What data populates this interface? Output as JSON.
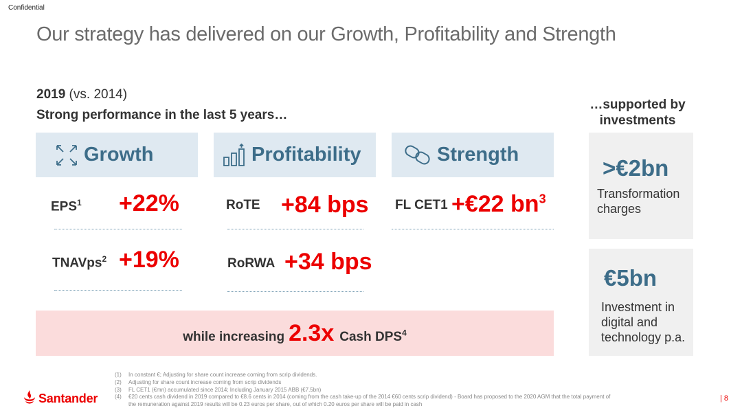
{
  "confidential": "Confidential",
  "title": "Our strategy has delivered on our Growth, Profitability and Strength",
  "year": {
    "bold": "2019",
    "rest": " (vs. 2014)"
  },
  "subtitle": "Strong performance in the last 5 years…",
  "supported_by": "…supported by investments",
  "pillars": [
    {
      "label": "Growth",
      "icon": "expand-arrows-icon"
    },
    {
      "label": "Profitability",
      "icon": "bar-growth-icon"
    },
    {
      "label": "Strength",
      "icon": "chain-link-icon"
    }
  ],
  "metrics": {
    "eps": {
      "name": "EPS",
      "sup": "1",
      "value": "+22%"
    },
    "tnavps": {
      "name": "TNAVps",
      "sup": "2",
      "value": "+19%"
    },
    "rote": {
      "name": "RoTE",
      "value": "+84 bps"
    },
    "rorwa": {
      "name": "RoRWA",
      "value": "+34 bps"
    },
    "cet1": {
      "name": "FL CET1",
      "value": "+€22 bn",
      "sup": "3"
    }
  },
  "dps": {
    "prefix": "while increasing",
    "value": "2.3x",
    "suffix": "Cash DPS",
    "sup": "4"
  },
  "side": [
    {
      "value": ">€2bn",
      "text": "Transformation charges"
    },
    {
      "value": "€5bn",
      "text": "Investment in digital and technology p.a."
    }
  ],
  "footnotes": [
    {
      "n": "(1)",
      "text": "In constant €; Adjusting for share count increase coming from scrip dividends."
    },
    {
      "n": "(2)",
      "text": "Adjusting for share count increase coming from scrip dividends"
    },
    {
      "n": "(3)",
      "text": "FL CET1 (€mn) accumulated since 2014; Including January 2015 ABB (€7.5bn)"
    },
    {
      "n": "(4)",
      "text": "€20 cents cash dividend in 2019 compared to €8.6 cents in 2014 (coming from the cash take-up of the 2014 €60 cents scrip dividend) - Board has proposed to the 2020 AGM that the total payment of"
    },
    {
      "n": "",
      "text": "the remuneration against 2019 results will be 0.23 euros per share, out of which 0.20 euros per share will be paid in cash"
    }
  ],
  "brand": "Santander",
  "page_number": "| 8",
  "colors": {
    "accent_red": "#ec0000",
    "pillar_blue": "#3d6d89",
    "pillar_bg": "#dfe9f1",
    "dps_bg": "#fbdcdc"
  }
}
